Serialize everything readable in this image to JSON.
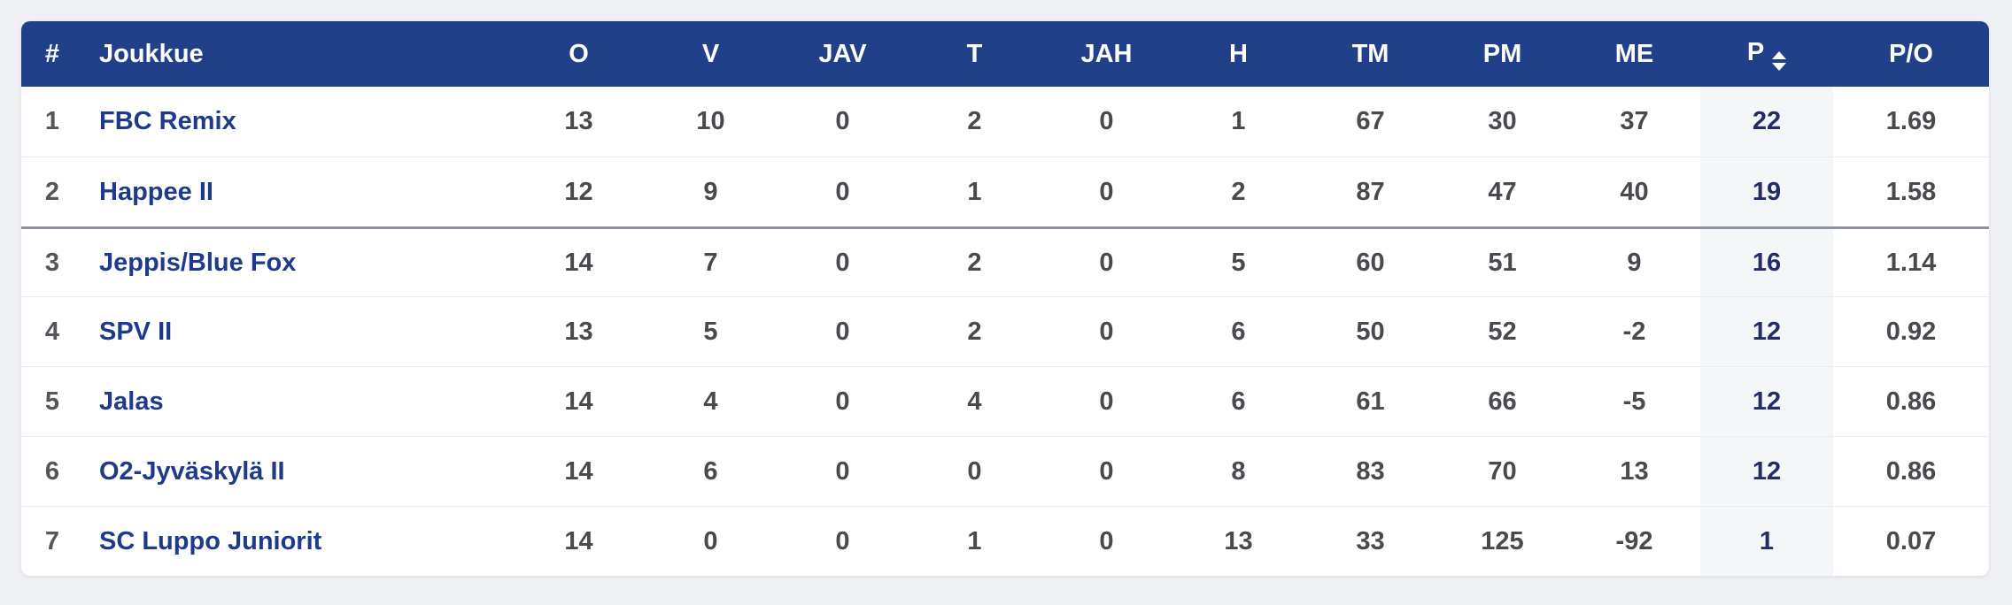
{
  "colors": {
    "page_bg": "#eef0f4",
    "header_bg": "#21408a",
    "header_text": "#ffffff",
    "team_link": "#1e3a8c",
    "value_text": "#49494e",
    "points_text": "#232c68",
    "points_col_bg": "#f5f6f8",
    "row_border": "#ececf0",
    "playoff_divider": "#8d939c"
  },
  "table": {
    "columns": {
      "rank": "#",
      "team": "Joukkue",
      "o": "O",
      "v": "V",
      "jav": "JAV",
      "t": "T",
      "jah": "JAH",
      "h": "H",
      "tm": "TM",
      "pm": "PM",
      "me": "ME",
      "p": "P",
      "po": "P/O"
    },
    "sorted_column": "P",
    "divider_above_rank": "3",
    "rows": [
      {
        "rank": "1",
        "team": "FBC Remix",
        "o": "13",
        "v": "10",
        "jav": "0",
        "t": "2",
        "jah": "0",
        "h": "1",
        "tm": "67",
        "pm": "30",
        "me": "37",
        "p": "22",
        "po": "1.69"
      },
      {
        "rank": "2",
        "team": "Happee II",
        "o": "12",
        "v": "9",
        "jav": "0",
        "t": "1",
        "jah": "0",
        "h": "2",
        "tm": "87",
        "pm": "47",
        "me": "40",
        "p": "19",
        "po": "1.58"
      },
      {
        "rank": "3",
        "team": "Jeppis/Blue Fox",
        "o": "14",
        "v": "7",
        "jav": "0",
        "t": "2",
        "jah": "0",
        "h": "5",
        "tm": "60",
        "pm": "51",
        "me": "9",
        "p": "16",
        "po": "1.14"
      },
      {
        "rank": "4",
        "team": "SPV II",
        "o": "13",
        "v": "5",
        "jav": "0",
        "t": "2",
        "jah": "0",
        "h": "6",
        "tm": "50",
        "pm": "52",
        "me": "-2",
        "p": "12",
        "po": "0.92"
      },
      {
        "rank": "5",
        "team": "Jalas",
        "o": "14",
        "v": "4",
        "jav": "0",
        "t": "4",
        "jah": "0",
        "h": "6",
        "tm": "61",
        "pm": "66",
        "me": "-5",
        "p": "12",
        "po": "0.86"
      },
      {
        "rank": "6",
        "team": "O2-Jyväskylä II",
        "o": "14",
        "v": "6",
        "jav": "0",
        "t": "0",
        "jah": "0",
        "h": "8",
        "tm": "83",
        "pm": "70",
        "me": "13",
        "p": "12",
        "po": "0.86"
      },
      {
        "rank": "7",
        "team": "SC Luppo Juniorit",
        "o": "14",
        "v": "0",
        "jav": "0",
        "t": "1",
        "jah": "0",
        "h": "13",
        "tm": "33",
        "pm": "125",
        "me": "-92",
        "p": "1",
        "po": "0.07"
      }
    ]
  }
}
